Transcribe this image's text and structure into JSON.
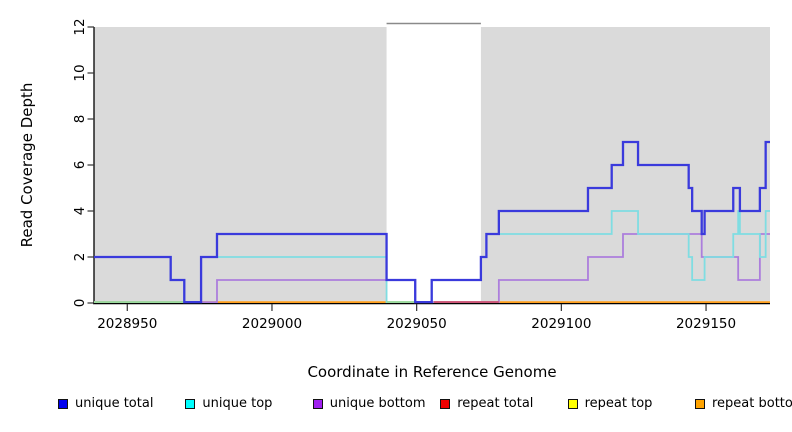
{
  "chart_data": {
    "type": "line",
    "subtype": "step-coverage",
    "title": "",
    "xlabel": "Coordinate in Reference Genome",
    "ylabel": "Read Coverage Depth",
    "ylim": [
      0,
      12
    ],
    "yticks": [
      0,
      2,
      4,
      6,
      8,
      10,
      12
    ],
    "xticks": [
      2028950,
      2029000,
      2029050,
      2029100,
      2029150
    ],
    "x_domain": [
      2028938.5,
      2029172.1
    ],
    "grid": false,
    "background": "#dadada",
    "highlight_band": {
      "from": 2029039.6,
      "to": 2029072.2,
      "color": "#ffffff"
    },
    "series": [
      {
        "name": "repeat total",
        "color": "#dd2222",
        "hidden": true,
        "points": [
          [
            2028938.5,
            0
          ]
        ],
        "end": 2029172.1
      },
      {
        "name": "repeat top",
        "color": "#eeee00",
        "hidden": true,
        "points": [
          [
            2028938.5,
            0
          ]
        ],
        "end": 2029172.1
      },
      {
        "name": "repeat bottom",
        "color": "#ff9e1b",
        "hidden": false,
        "points": [
          [
            2028938.5,
            0
          ]
        ],
        "end": 2029172.1
      },
      {
        "name": "unique bottom",
        "color": "#ac7edc",
        "hidden": false,
        "points": [
          [
            2028938.5,
            0
          ],
          [
            2028981,
            1
          ],
          [
            2029049.5,
            0
          ],
          [
            2029078.4,
            1
          ],
          [
            2029109.2,
            2
          ],
          [
            2029121.3,
            3
          ],
          [
            2029148.5,
            2
          ],
          [
            2029161.1,
            1
          ],
          [
            2029168.6,
            3
          ]
        ],
        "end": 2029172.1
      },
      {
        "name": "unique top",
        "color": "#7fdde2",
        "hidden": false,
        "points": [
          [
            2028938.5,
            2
          ],
          [
            2028965,
            1
          ],
          [
            2028969.7,
            0
          ],
          [
            2028975.5,
            2
          ],
          [
            2029039.6,
            0
          ],
          [
            2029055.2,
            1
          ],
          [
            2029072.2,
            2
          ],
          [
            2029074.1,
            3
          ],
          [
            2029117.4,
            4
          ],
          [
            2029126.5,
            3
          ],
          [
            2029144,
            2
          ],
          [
            2029145.2,
            1
          ],
          [
            2029149.5,
            2
          ],
          [
            2029159.4,
            3
          ],
          [
            2029161.1,
            4
          ],
          [
            2029161.7,
            3
          ],
          [
            2029168.6,
            2
          ],
          [
            2029170.6,
            4
          ]
        ],
        "end": 2029172.1
      },
      {
        "name": "unique total",
        "color": "#3a3adc",
        "hidden": false,
        "points": [
          [
            2028938.5,
            2
          ],
          [
            2028965,
            1
          ],
          [
            2028969.7,
            0
          ],
          [
            2028975.5,
            2
          ],
          [
            2028981,
            3
          ],
          [
            2029039.6,
            1
          ],
          [
            2029049.5,
            0
          ],
          [
            2029055.2,
            1
          ],
          [
            2029072.2,
            2
          ],
          [
            2029074.1,
            3
          ],
          [
            2029078.4,
            4
          ],
          [
            2029109.2,
            5
          ],
          [
            2029117.4,
            6
          ],
          [
            2029121.3,
            7
          ],
          [
            2029126.5,
            6
          ],
          [
            2029144,
            5
          ],
          [
            2029145.2,
            4
          ],
          [
            2029148.5,
            3
          ],
          [
            2029149.5,
            4
          ],
          [
            2029159.4,
            5
          ],
          [
            2029161.7,
            4
          ],
          [
            2029168.6,
            5
          ],
          [
            2029170.6,
            7
          ]
        ],
        "end": 2029172.1
      }
    ],
    "zero_line_artifacts": [
      {
        "color": "#9bdb9e",
        "from": 2028938.5,
        "to": 2028969.7
      },
      {
        "color": "#9bdb9e",
        "from": 2029039.6,
        "to": 2029049.5
      },
      {
        "color": "#cc5577",
        "from": 2029056,
        "to": 2029078.4
      }
    ]
  },
  "legend": {
    "items": [
      {
        "label": "unique total",
        "color": "#0000ee"
      },
      {
        "label": "unique top",
        "color": "#00ffff"
      },
      {
        "label": "unique bottom",
        "color": "#a020f0"
      },
      {
        "label": "repeat total",
        "color": "#ee0000"
      },
      {
        "label": "repeat top",
        "color": "#ffff00"
      },
      {
        "label": "repeat bottom",
        "color": "#ffa300"
      }
    ]
  }
}
